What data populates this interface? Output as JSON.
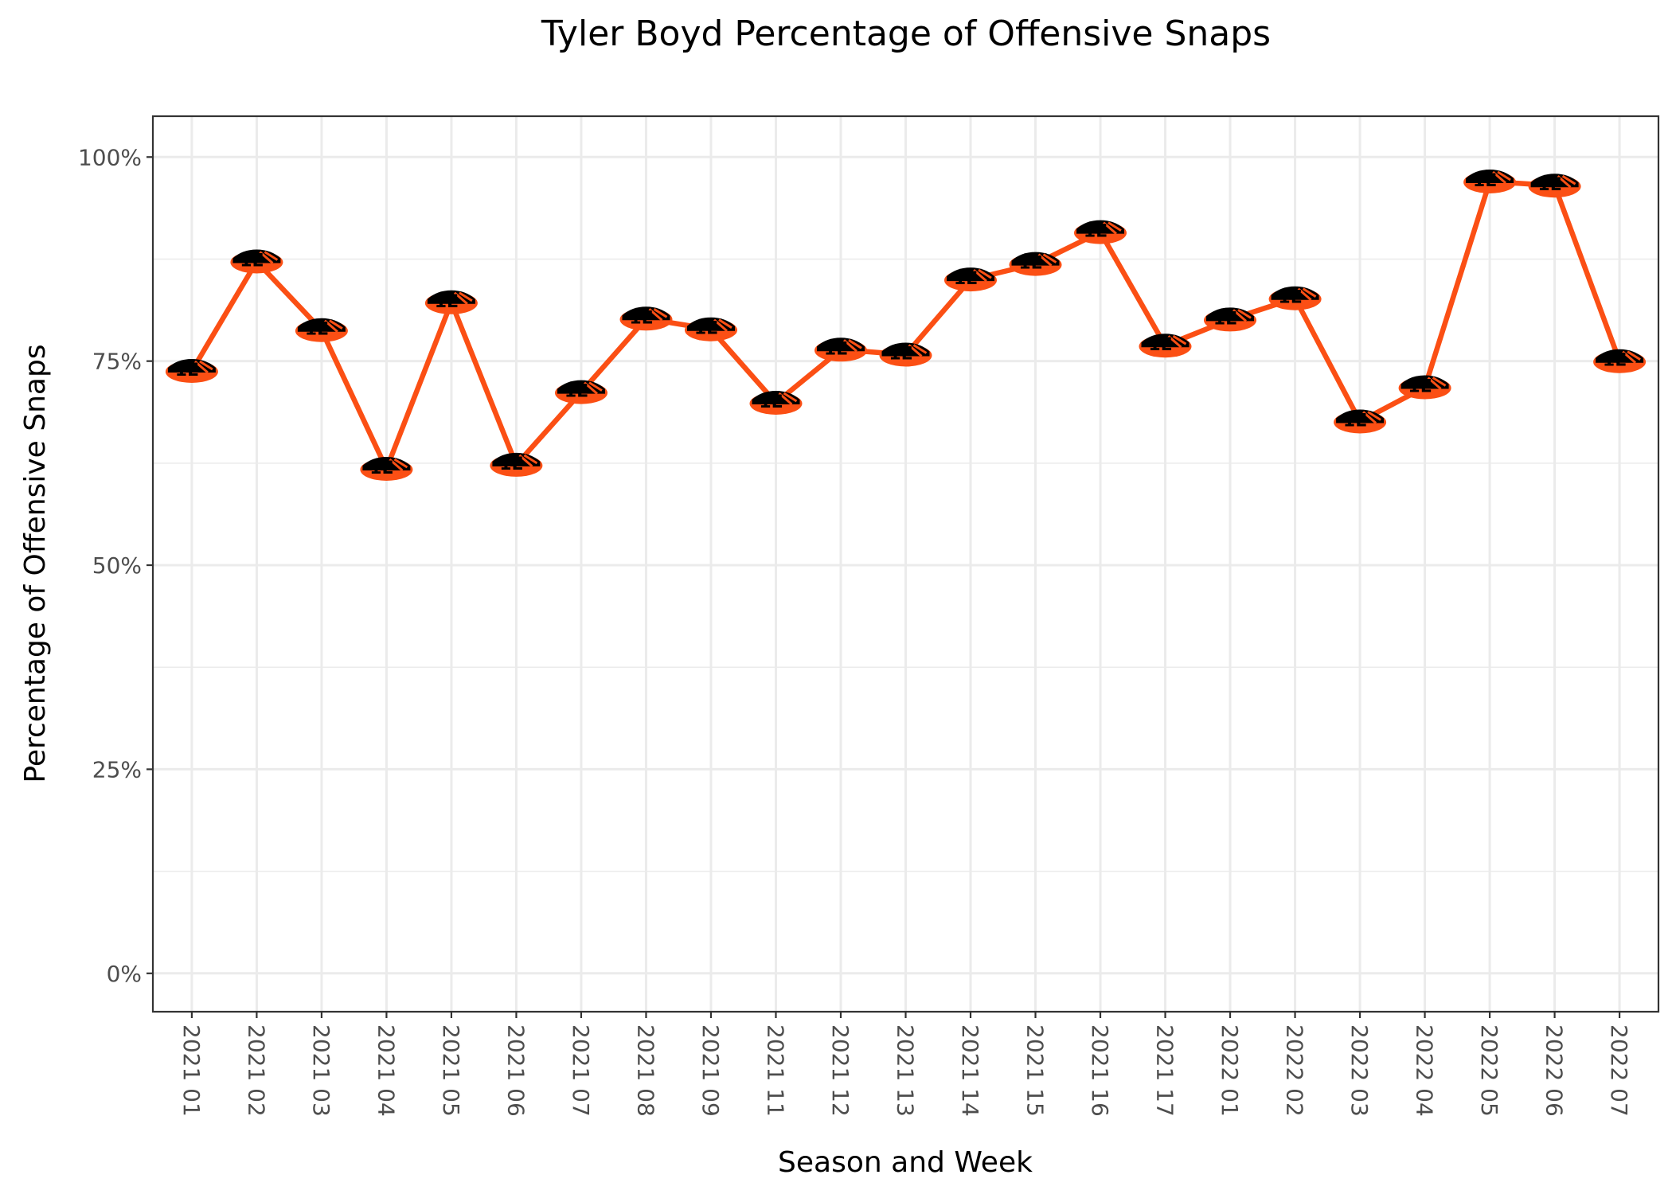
{
  "chart_data": {
    "type": "line",
    "title": "Tyler Boyd Percentage of Offensive Snaps",
    "xlabel": "Season and Week",
    "ylabel": "Percentage of Offensive Snaps",
    "categories": [
      "2021 01",
      "2021 02",
      "2021 03",
      "2021 04",
      "2021 05",
      "2021 06",
      "2021 07",
      "2021 08",
      "2021 09",
      "2021 11",
      "2021 12",
      "2021 13",
      "2021 14",
      "2021 15",
      "2021 16",
      "2021 17",
      "2022 01",
      "2022 02",
      "2022 03",
      "2022 04",
      "2022 05",
      "2022 06",
      "2022 07"
    ],
    "series": [
      {
        "values": [
          73.8,
          87.2,
          78.8,
          61.8,
          82.2,
          62.3,
          71.2,
          80.2,
          78.9,
          69.9,
          76.4,
          75.8,
          85.0,
          86.9,
          90.8,
          76.9,
          80.1,
          82.7,
          67.6,
          71.8,
          97.0,
          96.5,
          75.0
        ]
      }
    ],
    "ylim": [
      -4.7,
      105.0
    ],
    "yticks": [
      0,
      25,
      50,
      75,
      100
    ],
    "ytick_labels": [
      "0%",
      "25%",
      "50%",
      "75%",
      "100%"
    ],
    "grid": true,
    "legend": "none",
    "colors": {
      "line": "#FB4F14",
      "marker_fill": "#FB4F14",
      "marker_stripe": "#000000"
    },
    "marker_icon": "bengals-helmet-icon",
    "marker_text": "1E"
  }
}
